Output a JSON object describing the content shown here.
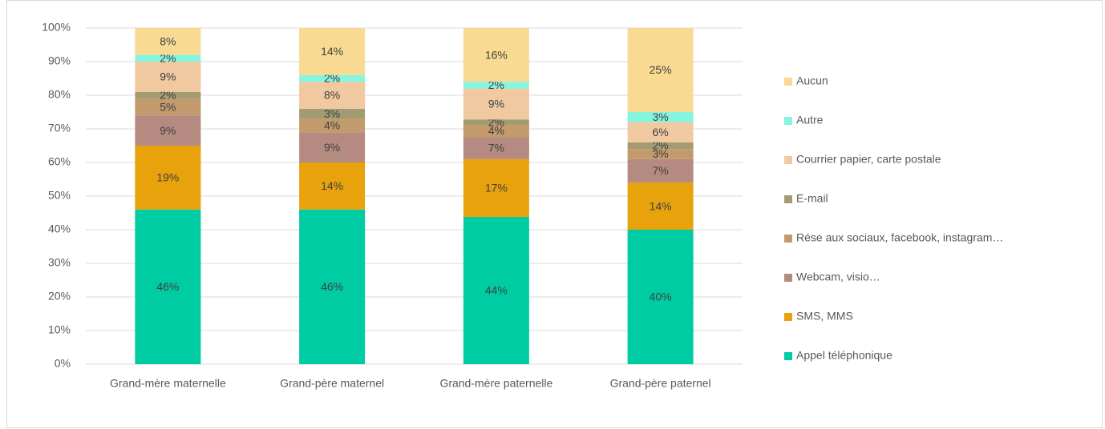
{
  "chart_data": {
    "type": "stacked_bar",
    "categories": [
      "Grand-mère maternelle",
      "Grand-père maternel",
      "Grand-mère paternelle",
      "Grand-père paternel"
    ],
    "series": [
      {
        "name": "Appel téléphonique",
        "color": "#00cca3",
        "values": [
          46,
          46,
          43.8,
          40
        ],
        "value_labels": [
          "46%",
          "46%",
          "44%",
          "40%"
        ]
      },
      {
        "name": "SMS, MMS",
        "color": "#e8a20c",
        "values": [
          19,
          14,
          17.2,
          14
        ],
        "value_labels": [
          "19%",
          "14%",
          "17%",
          "14%"
        ]
      },
      {
        "name": "Webcam, visio…",
        "color": "#b58a80",
        "values": [
          9,
          9,
          6.6,
          7
        ],
        "value_labels": [
          "9%",
          "9%",
          "7%",
          "7%"
        ]
      },
      {
        "name": "Rése aux sociaux, facebook, instagram…",
        "color": "#c39a6b",
        "values": [
          5,
          4,
          3.6,
          3
        ],
        "value_labels": [
          "5%",
          "4%",
          "4%",
          "3%"
        ]
      },
      {
        "name": "E-mail",
        "color": "#a39b72",
        "values": [
          2,
          3,
          1.6,
          2
        ],
        "value_labels": [
          "2%",
          "3%",
          "2%",
          "2%"
        ]
      },
      {
        "name": "Courrier papier, carte postale",
        "color": "#f1c9a1",
        "values": [
          9,
          8,
          9.2,
          6
        ],
        "value_labels": [
          "9%",
          "8%",
          "9%",
          "6%"
        ]
      },
      {
        "name": "Autre",
        "color": "#86f5e0",
        "values": [
          2,
          2,
          2,
          3
        ],
        "value_labels": [
          "2%",
          "2%",
          "2%",
          "3%"
        ]
      },
      {
        "name": "Aucun",
        "color": "#f9da92",
        "values": [
          8,
          14,
          16,
          25
        ],
        "value_labels": [
          "8%",
          "14%",
          "16%",
          "25%"
        ]
      }
    ],
    "ylim": [
      0,
      100
    ],
    "yticks": [
      {
        "value": 0,
        "label": "0%"
      },
      {
        "value": 10,
        "label": "10%"
      },
      {
        "value": 20,
        "label": "20%"
      },
      {
        "value": 30,
        "label": "30%"
      },
      {
        "value": 40,
        "label": "40%"
      },
      {
        "value": 50,
        "label": "50%"
      },
      {
        "value": 60,
        "label": "60%"
      },
      {
        "value": 70,
        "label": "70%"
      },
      {
        "value": 80,
        "label": "80%"
      },
      {
        "value": 90,
        "label": "90%"
      },
      {
        "value": 100,
        "label": "100%"
      }
    ],
    "grid": true,
    "legend": "right"
  }
}
